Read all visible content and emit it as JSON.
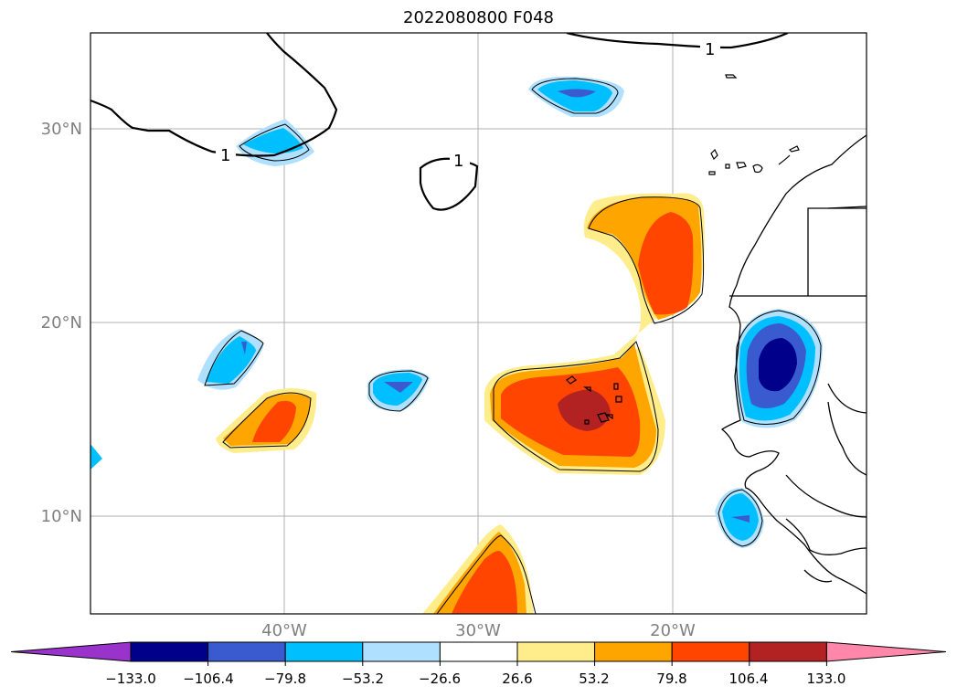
{
  "title": "2022080800 F048",
  "map": {
    "lat_labels": [
      "30°N",
      "20°N",
      "10°N"
    ],
    "lon_labels": [
      "40°W",
      "30°W",
      "20°W"
    ],
    "contour_labels": [
      "1",
      "1",
      "1"
    ],
    "line_color": "#000000",
    "grid_color": "#b0b0b0"
  },
  "colorbar": {
    "colors": [
      "#9933cc",
      "#00008b",
      "#3a5bd0",
      "#00bfff",
      "#b0e0ff",
      "#ffffff",
      "#ffec8b",
      "#ffa500",
      "#ff4500",
      "#b22222",
      "#ff88aa"
    ],
    "tick_labels": [
      "−133.0",
      "−106.4",
      "−79.8",
      "−53.2",
      "−26.6",
      "26.6",
      "53.2",
      "79.8",
      "106.4",
      "133.0"
    ]
  }
}
